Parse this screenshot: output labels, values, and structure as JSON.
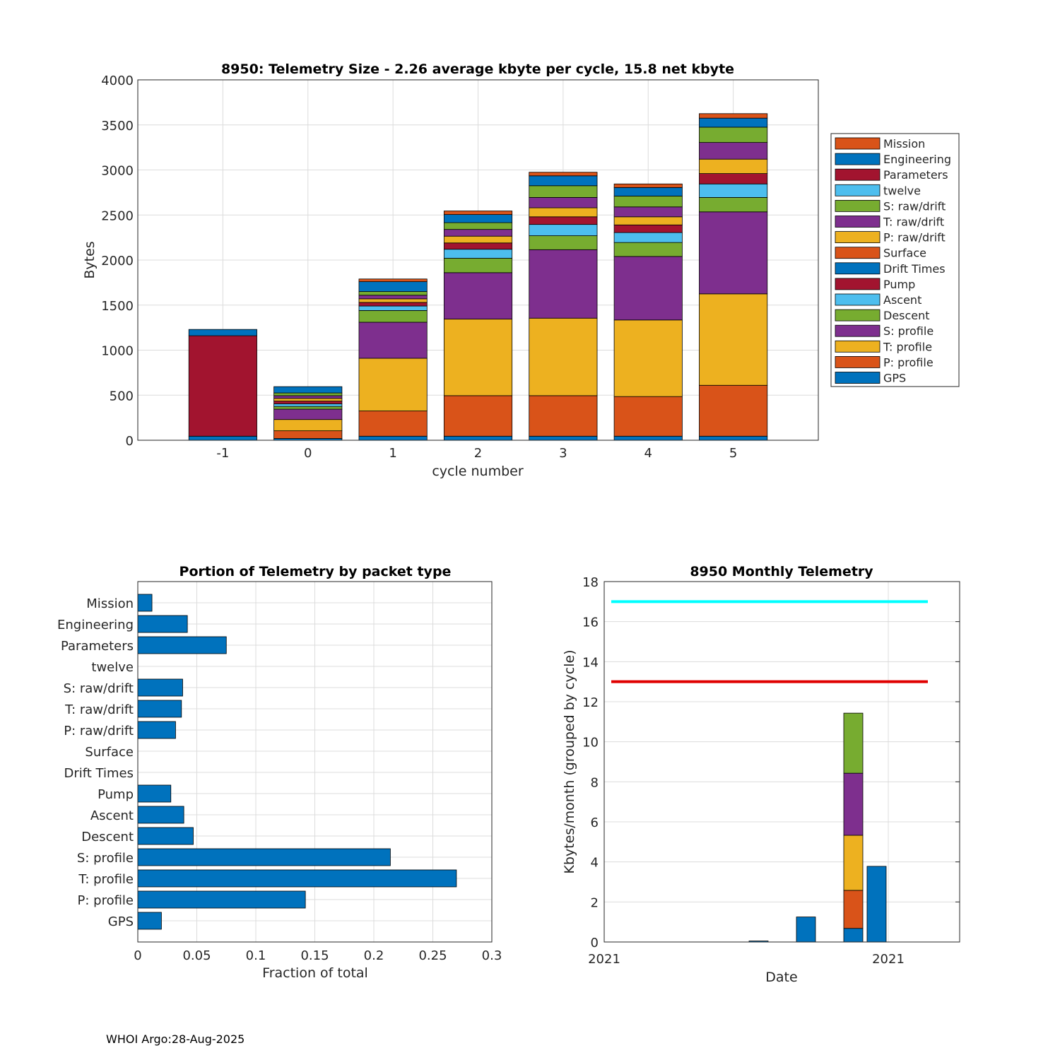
{
  "footer": "WHOI Argo:28-Aug-2025",
  "colors": {
    "GPS": "#0072BD",
    "P: profile": "#D95319",
    "T: profile": "#EDB120",
    "S: profile": "#7E2F8E",
    "Descent": "#77AC30",
    "Ascent": "#4DBEEE",
    "Pump": "#A2142F",
    "Drift Times": "#0072BD",
    "Surface": "#D95319",
    "P: raw/drift": "#EDB120",
    "T: raw/drift": "#7E2F8E",
    "S: raw/drift": "#77AC30",
    "twelve": "#4DBEEE",
    "Parameters": "#A2142F",
    "Engineering": "#0072BD",
    "Mission": "#D95319",
    "limit_high": "#00FFFF",
    "limit_low": "#E00000",
    "monthly_bar": "#0072BD"
  },
  "chart_data": [
    {
      "type": "bar",
      "stacked": true,
      "title": "8950: Telemetry Size - 2.26 average kbyte per cycle,   15.8 net kbyte",
      "xlabel": "cycle number",
      "ylabel": "Bytes",
      "categories": [
        "-1",
        "0",
        "1",
        "2",
        "3",
        "4",
        "5"
      ],
      "ylim": [
        0,
        4000
      ],
      "yticks": [
        "0",
        "500",
        "1000",
        "1500",
        "2000",
        "2500",
        "3000",
        "3500",
        "4000"
      ],
      "legend_position": "outside-right",
      "legend_order": [
        "Mission",
        "Engineering",
        "Parameters",
        "twelve",
        "S: raw/drift",
        "T: raw/drift",
        "P: raw/drift",
        "Surface",
        "Drift Times",
        "Pump",
        "Ascent",
        "Descent",
        "S: profile",
        "T: profile",
        "P: profile",
        "GPS"
      ],
      "series": [
        {
          "name": "GPS",
          "values": [
            45,
            20,
            45,
            45,
            45,
            45,
            45
          ]
        },
        {
          "name": "P: profile",
          "values": [
            0,
            85,
            280,
            450,
            450,
            440,
            565
          ]
        },
        {
          "name": "T: profile",
          "values": [
            0,
            125,
            585,
            850,
            860,
            850,
            1015
          ]
        },
        {
          "name": "S: profile",
          "values": [
            0,
            115,
            400,
            515,
            760,
            705,
            910
          ]
        },
        {
          "name": "Descent",
          "values": [
            0,
            30,
            130,
            160,
            155,
            155,
            160
          ]
        },
        {
          "name": "Ascent",
          "values": [
            0,
            30,
            50,
            100,
            125,
            110,
            150
          ]
        },
        {
          "name": "Pump",
          "values": [
            0,
            30,
            40,
            70,
            85,
            85,
            115
          ]
        },
        {
          "name": "Drift Times",
          "values": [
            0,
            0,
            0,
            0,
            0,
            0,
            0
          ]
        },
        {
          "name": "Surface",
          "values": [
            0,
            0,
            0,
            0,
            0,
            0,
            0
          ]
        },
        {
          "name": "P: raw/drift",
          "values": [
            0,
            30,
            40,
            75,
            100,
            90,
            160
          ]
        },
        {
          "name": "T: raw/drift",
          "values": [
            0,
            30,
            40,
            75,
            115,
            110,
            185
          ]
        },
        {
          "name": "S: raw/drift",
          "values": [
            0,
            30,
            40,
            75,
            130,
            120,
            170
          ]
        },
        {
          "name": "twelve",
          "values": [
            0,
            0,
            0,
            0,
            0,
            0,
            0
          ]
        },
        {
          "name": "Parameters",
          "values": [
            1115,
            0,
            0,
            0,
            0,
            0,
            0
          ]
        },
        {
          "name": "Engineering",
          "values": [
            70,
            70,
            110,
            90,
            110,
            95,
            100
          ]
        },
        {
          "name": "Mission",
          "values": [
            0,
            0,
            30,
            40,
            40,
            40,
            50
          ]
        }
      ]
    },
    {
      "type": "bar",
      "orientation": "horizontal",
      "title": "Portion of Telemetry by packet type",
      "xlabel": "Fraction of total",
      "ylabel": "",
      "xlim": [
        0,
        0.3
      ],
      "xticks": [
        "0",
        "0.05",
        "0.1",
        "0.15",
        "0.2",
        "0.25",
        "0.3"
      ],
      "categories": [
        "GPS",
        "P: profile",
        "T: profile",
        "S: profile",
        "Descent",
        "Ascent",
        "Pump",
        "Drift Times",
        "Surface",
        "P: raw/drift",
        "T: raw/drift",
        "S: raw/drift",
        "twelve",
        "Parameters",
        "Engineering",
        "Mission"
      ],
      "values": [
        0.02,
        0.142,
        0.27,
        0.214,
        0.047,
        0.039,
        0.028,
        0,
        0,
        0.032,
        0.037,
        0.038,
        0,
        0.075,
        0.042,
        0.012
      ]
    },
    {
      "type": "bar",
      "stacked": true,
      "title": "8950 Monthly Telemetry",
      "xlabel": "Date",
      "ylabel": "Kbytes/month (grouped by cycle)",
      "ylim": [
        0,
        18
      ],
      "yticks": [
        "0",
        "2",
        "4",
        "6",
        "8",
        "10",
        "12",
        "14",
        "16",
        "18"
      ],
      "x_tick_labels": [
        "2021",
        "2021"
      ],
      "reference_lines": [
        {
          "name": "upper limit",
          "value": 17,
          "color": "#00FFFF"
        },
        {
          "name": "lower limit",
          "value": 13,
          "color": "#E00000"
        }
      ],
      "bars": [
        {
          "group": 1,
          "segments": [
            0.05
          ]
        },
        {
          "group": 2,
          "segments": [
            1.25
          ]
        },
        {
          "group": 3,
          "segments": [
            0.68,
            1.9,
            2.75,
            3.1,
            3.0
          ]
        },
        {
          "group": 4,
          "segments": [
            3.78
          ]
        }
      ],
      "segment_colors": [
        "#0072BD",
        "#D95319",
        "#EDB120",
        "#7E2F8E",
        "#77AC30"
      ]
    }
  ]
}
